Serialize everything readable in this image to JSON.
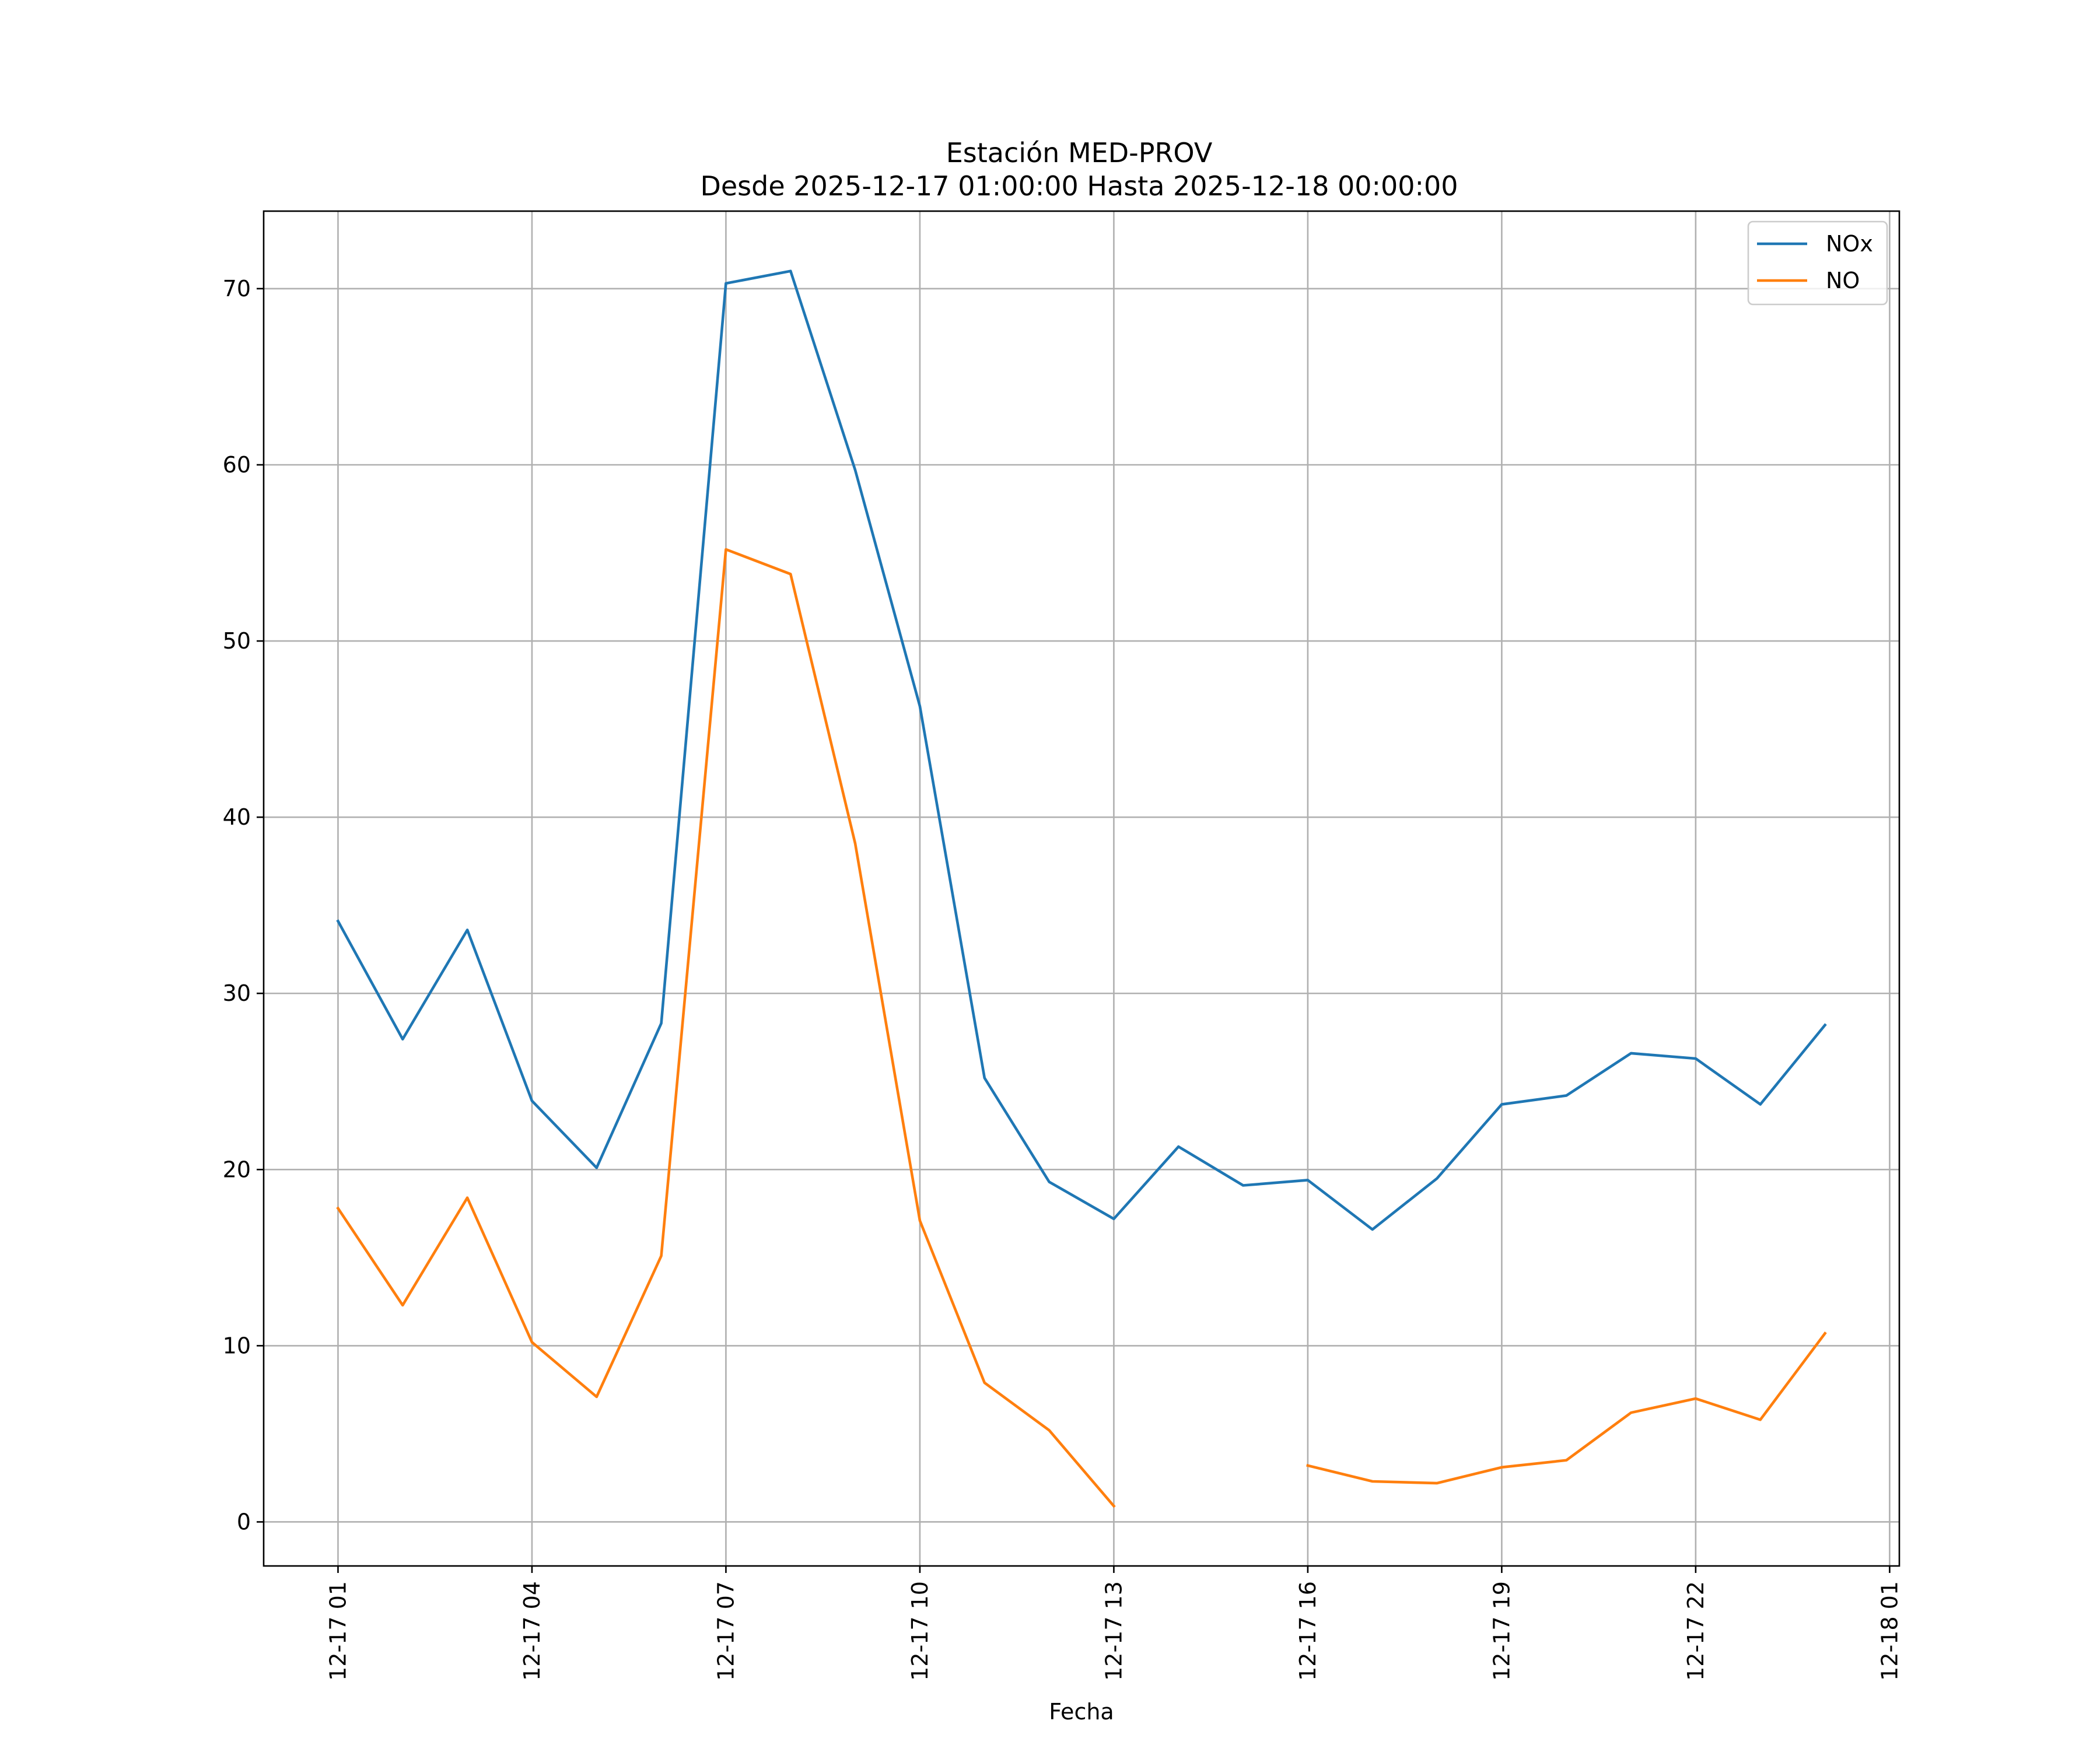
{
  "chart_data": {
    "type": "line",
    "title": "Estación MED-PROV",
    "subtitle": "Desde 2025-12-17 01:00:00 Hasta 2025-12-18 00:00:00",
    "xlabel": "Fecha",
    "ylabel": "",
    "x": [
      1,
      2,
      3,
      4,
      5,
      6,
      7,
      8,
      9,
      10,
      11,
      12,
      13,
      14,
      15,
      16,
      17,
      18,
      19,
      20,
      21,
      22,
      23,
      24
    ],
    "xlim": [
      -0.15,
      25.15
    ],
    "ylim": [
      -2.5,
      74.4
    ],
    "xticks": [
      {
        "value": 1,
        "label": "12-17 01"
      },
      {
        "value": 4,
        "label": "12-17 04"
      },
      {
        "value": 7,
        "label": "12-17 07"
      },
      {
        "value": 10,
        "label": "12-17 10"
      },
      {
        "value": 13,
        "label": "12-17 13"
      },
      {
        "value": 16,
        "label": "12-17 16"
      },
      {
        "value": 19,
        "label": "12-17 19"
      },
      {
        "value": 22,
        "label": "12-17 22"
      },
      {
        "value": 25,
        "label": "12-18 01"
      }
    ],
    "yticks": [
      {
        "value": 0,
        "label": "0"
      },
      {
        "value": 10,
        "label": "10"
      },
      {
        "value": 20,
        "label": "20"
      },
      {
        "value": 30,
        "label": "30"
      },
      {
        "value": 40,
        "label": "40"
      },
      {
        "value": 50,
        "label": "50"
      },
      {
        "value": 60,
        "label": "60"
      },
      {
        "value": 70,
        "label": "70"
      }
    ],
    "grid": true,
    "legend_position": "top-right",
    "series": [
      {
        "name": "NOx",
        "color": "#1f77b4",
        "values": [
          34.1,
          27.4,
          33.6,
          23.9,
          20.1,
          28.3,
          70.3,
          71.0,
          59.7,
          46.3,
          25.2,
          19.3,
          17.2,
          21.3,
          19.1,
          19.4,
          16.6,
          19.5,
          23.7,
          24.2,
          26.6,
          26.3,
          23.7,
          28.2
        ]
      },
      {
        "name": "NO",
        "color": "#ff7f0e",
        "values": [
          17.8,
          12.3,
          18.4,
          10.2,
          7.1,
          15.1,
          55.2,
          53.8,
          38.5,
          17.1,
          7.9,
          5.2,
          0.9,
          null,
          null,
          3.2,
          2.3,
          2.2,
          3.1,
          3.5,
          6.2,
          7.0,
          5.8,
          10.7
        ]
      }
    ]
  }
}
